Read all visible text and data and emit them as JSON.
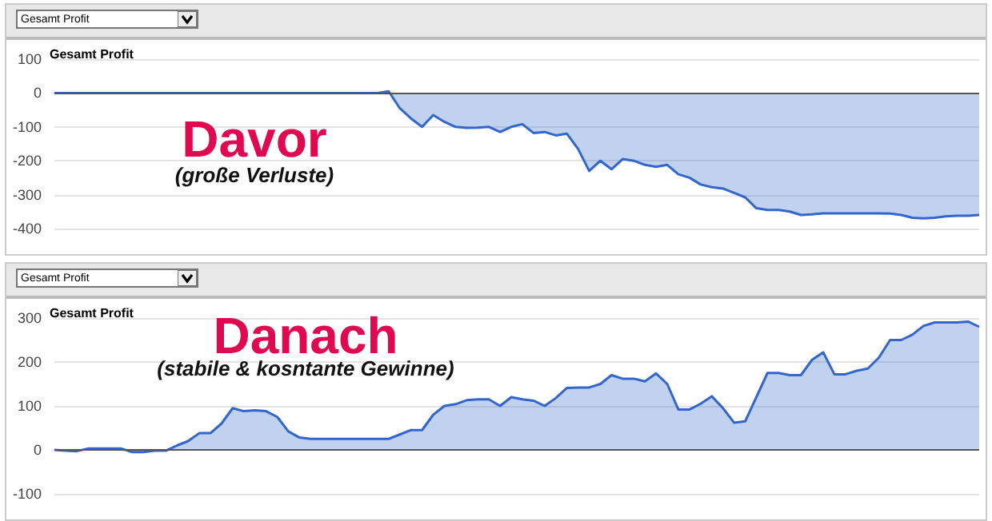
{
  "chart_data": [
    {
      "type": "area",
      "title": "Gesamt Profit",
      "annotations": [
        "Gesamt Profit",
        "Davor",
        "(große Verluste)"
      ],
      "tick_labels": "y",
      "grid": "y",
      "line_style": "solid",
      "ylim": [
        -400,
        100
      ],
      "yticks": [
        -400,
        -300,
        -200,
        -100,
        0,
        100
      ],
      "categories": [
        null,
        null,
        null,
        null,
        null,
        null,
        null,
        null,
        null,
        null,
        null,
        null,
        null,
        null,
        null,
        null,
        null,
        null,
        null,
        null,
        null,
        null,
        null,
        null,
        null,
        null,
        null,
        null,
        null,
        null,
        null,
        null,
        null,
        null,
        null,
        null,
        null,
        null,
        null,
        null,
        null,
        null,
        null,
        null,
        null,
        null,
        null,
        null,
        null,
        null,
        null,
        null,
        null,
        null,
        null,
        null,
        null,
        null,
        null,
        null,
        null,
        null,
        null,
        null,
        null,
        null,
        null,
        null,
        null,
        null,
        null,
        null,
        null,
        null,
        null,
        null,
        null,
        null,
        null,
        null,
        null,
        null,
        null,
        null
      ],
      "series": [
        {
          "color": "#3366cc",
          "values": [
            0,
            0,
            0,
            0,
            0,
            0,
            0,
            0,
            0,
            0,
            0,
            0,
            0,
            0,
            0,
            0,
            0,
            0,
            0,
            0,
            0,
            0,
            0,
            0,
            0,
            0,
            0,
            0,
            0,
            0,
            5,
            -45,
            -75,
            -100,
            -65,
            -85,
            -100,
            -103,
            -102,
            -100,
            -115,
            -100,
            -92,
            -118,
            -115,
            -125,
            -120,
            -165,
            -230,
            -200,
            -225,
            -195,
            -200,
            -212,
            -218,
            -212,
            -240,
            -250,
            -270,
            -278,
            -282,
            -295,
            -308,
            -340,
            -345,
            -345,
            -350,
            -360,
            -358,
            -355,
            -355,
            -355,
            -355,
            -355,
            -355,
            -356,
            -360,
            -368,
            -370,
            -368,
            -364,
            -362,
            -362,
            -360
          ]
        }
      ]
    },
    {
      "type": "area",
      "title": "Gesamt Profit",
      "annotations": [
        "Gesamt Profit",
        "Danach",
        "(stabile & kosntante Gewinne)"
      ],
      "tick_labels": "y",
      "grid": "y",
      "line_style": "solid",
      "ylim": [
        -100,
        300
      ],
      "yticks": [
        -100,
        0,
        100,
        200,
        300
      ],
      "categories": [
        null,
        null,
        null,
        null,
        null,
        null,
        null,
        null,
        null,
        null,
        null,
        null,
        null,
        null,
        null,
        null,
        null,
        null,
        null,
        null,
        null,
        null,
        null,
        null,
        null,
        null,
        null,
        null,
        null,
        null,
        null,
        null,
        null,
        null,
        null,
        null,
        null,
        null,
        null,
        null,
        null,
        null,
        null,
        null,
        null,
        null,
        null,
        null,
        null,
        null,
        null,
        null,
        null,
        null,
        null,
        null,
        null,
        null,
        null,
        null,
        null,
        null,
        null,
        null,
        null,
        null,
        null,
        null,
        null,
        null,
        null,
        null,
        null,
        null,
        null,
        null,
        null,
        null,
        null,
        null,
        null,
        null,
        null,
        null
      ],
      "series": [
        {
          "color": "#3366cc",
          "values": [
            0,
            -2,
            -3,
            3,
            3,
            3,
            3,
            -5,
            -5,
            -2,
            -2,
            10,
            20,
            38,
            38,
            60,
            95,
            88,
            90,
            88,
            75,
            42,
            28,
            25,
            25,
            25,
            25,
            25,
            25,
            25,
            25,
            35,
            45,
            45,
            80,
            100,
            104,
            113,
            115,
            115,
            100,
            120,
            115,
            112,
            100,
            118,
            141,
            142,
            142,
            150,
            170,
            162,
            162,
            156,
            174,
            150,
            92,
            92,
            105,
            122,
            95,
            62,
            65,
            120,
            175,
            175,
            170,
            170,
            205,
            222,
            172,
            172,
            180,
            185,
            210,
            250,
            250,
            262,
            282,
            290,
            290,
            290,
            292,
            280
          ]
        }
      ]
    }
  ]
}
